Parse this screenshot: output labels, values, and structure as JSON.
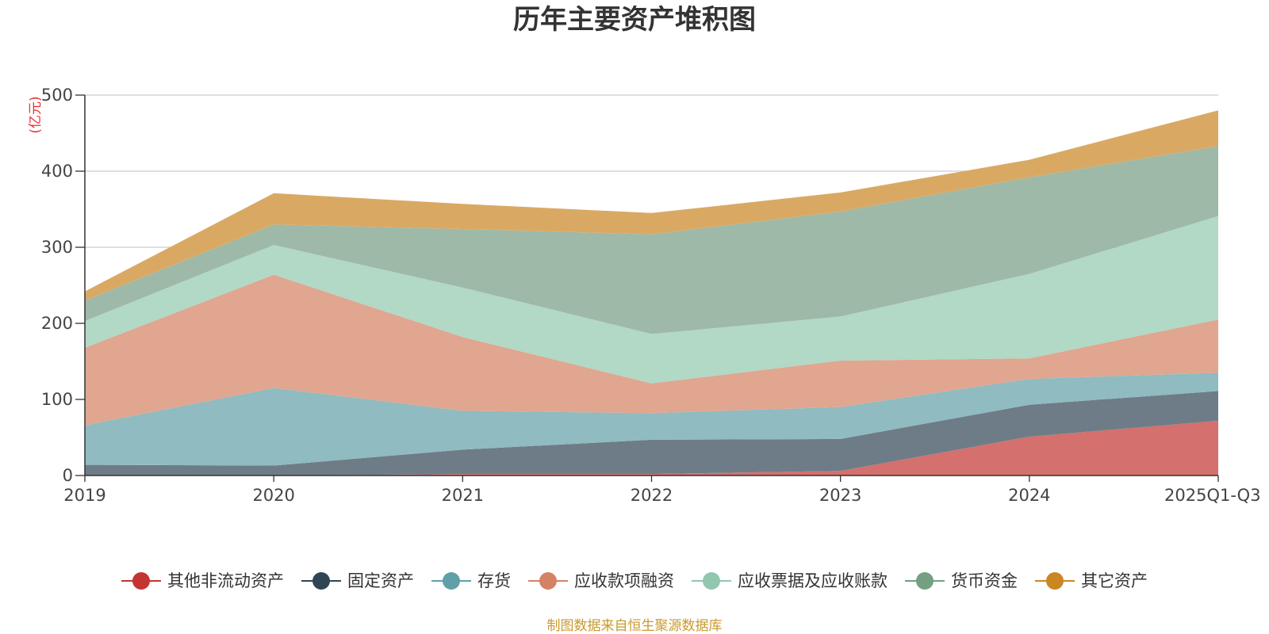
{
  "chart_data": {
    "type": "area",
    "stacked": true,
    "title": "历年主要资产堆积图",
    "unit": "(亿元)",
    "source": "制图数据来自恒生聚源数据库",
    "categories": [
      "2019",
      "2020",
      "2021",
      "2022",
      "2023",
      "2024",
      "2025Q1-Q3"
    ],
    "ylim": [
      0,
      500
    ],
    "yticks": [
      0,
      100,
      200,
      300,
      400,
      500
    ],
    "grid": true,
    "legend_position": "bottom",
    "series": [
      {
        "name": "其他非流动资产",
        "color": "#c23531",
        "fill": "#d4706d",
        "values": [
          0,
          0,
          2,
          2,
          6,
          51,
          72
        ]
      },
      {
        "name": "固定资产",
        "color": "#2f4554",
        "fill": "#6e7c87",
        "values": [
          14,
          13,
          32,
          45,
          42,
          42,
          39
        ]
      },
      {
        "name": "存货",
        "color": "#61a0a8",
        "fill": "#8fbbc1",
        "values": [
          52,
          102,
          51,
          35,
          42,
          34,
          24
        ]
      },
      {
        "name": "应收款项融资",
        "color": "#d48265",
        "fill": "#e0a690",
        "values": [
          102,
          149,
          97,
          39,
          61,
          27,
          70
        ]
      },
      {
        "name": "应收票据及应收账款",
        "color": "#91c7ae",
        "fill": "#b2d8c6",
        "values": [
          35,
          39,
          65,
          65,
          58,
          111,
          136
        ]
      },
      {
        "name": "货币资金",
        "color": "#749f83",
        "fill": "#9eb9a7",
        "values": [
          27,
          27,
          77,
          131,
          138,
          127,
          92
        ]
      },
      {
        "name": "其它资产",
        "color": "#ca8622",
        "fill": "#d9a964",
        "values": [
          12,
          41,
          33,
          28,
          25,
          23,
          47
        ]
      }
    ]
  }
}
